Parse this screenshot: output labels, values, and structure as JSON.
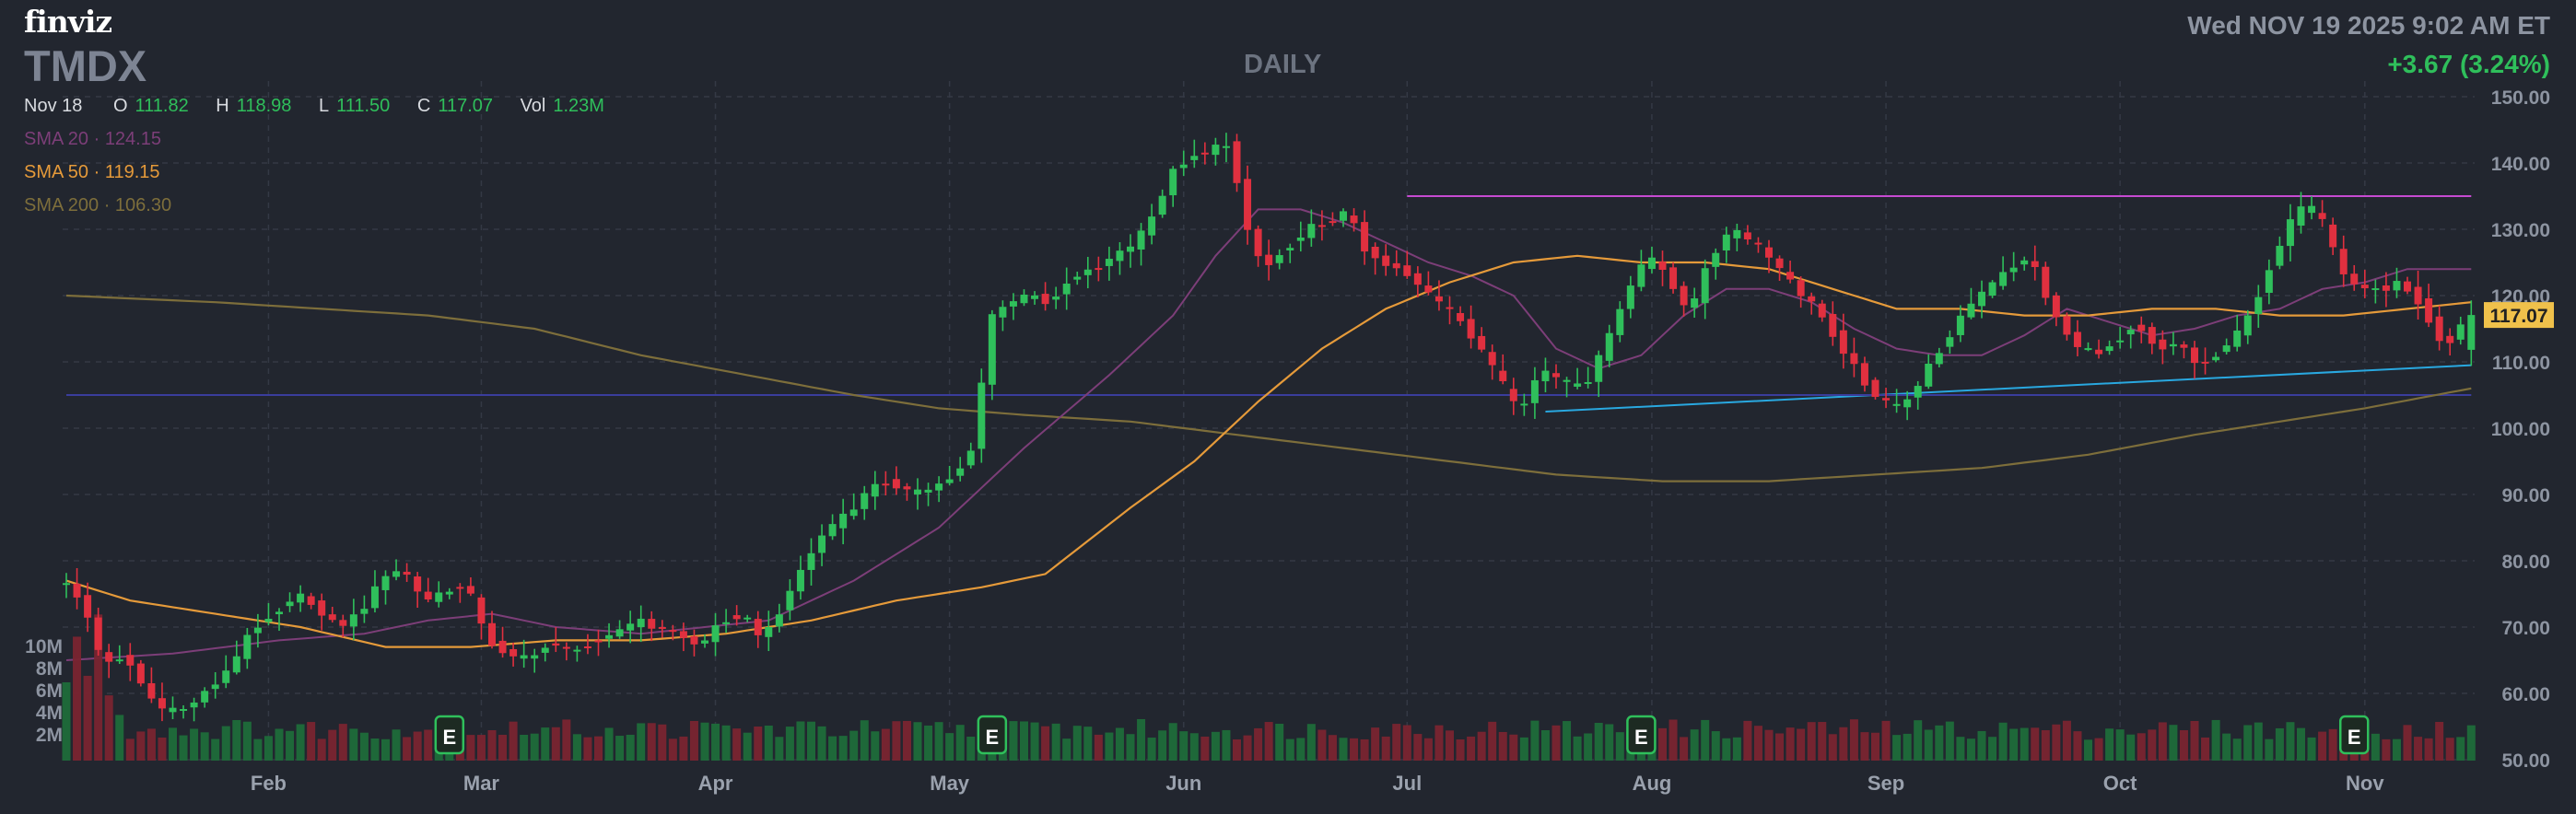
{
  "header": {
    "logo": "finviz",
    "ticker": "TMDX",
    "timeframe": "DAILY",
    "datetime": "Wed NOV 19 2025 9:02 AM ET",
    "change": "+3.67 (3.24%)"
  },
  "ohlc": {
    "date": "Nov 18",
    "open_label": "O",
    "open": "111.82",
    "high_label": "H",
    "high": "118.98",
    "low_label": "L",
    "low": "111.50",
    "close_label": "C",
    "close": "117.07",
    "vol_label": "Vol",
    "vol": "1.23M"
  },
  "indicators": [
    {
      "label": "SMA 20 · 124.15",
      "color": "#7c3e78"
    },
    {
      "label": "SMA 50 · 119.15",
      "color": "#e59a3a"
    },
    {
      "label": "SMA 200 · 106.30",
      "color": "#7d6e3b"
    }
  ],
  "colors": {
    "up": "#2fbf5b",
    "down": "#e0303f",
    "grid": "#343945",
    "price_tag": "#f0c14b"
  },
  "chart_data": {
    "type": "candlestick",
    "ylim": [
      50,
      150
    ],
    "y_ticks": [
      50,
      60,
      70,
      80,
      90,
      100,
      110,
      120,
      130,
      140,
      150
    ],
    "y_tick_labels": [
      "50.00",
      "60.00",
      "70.00",
      "80.00",
      "90.00",
      "100.00",
      "110.00",
      "120.00",
      "130.00",
      "140.00",
      "150.00"
    ],
    "x_tick_labels": [
      "Feb",
      "Mar",
      "Apr",
      "May",
      "Jun",
      "Jul",
      "Aug",
      "Sep",
      "Oct",
      "Nov"
    ],
    "x_tick_index": [
      19,
      39,
      61,
      83,
      105,
      126,
      149,
      171,
      193,
      216
    ],
    "last_price": "117.07",
    "volume_ticks": [
      "10M",
      "8M",
      "6M",
      "4M",
      "2M"
    ],
    "volume_max": 12,
    "earnings_markers": {
      "label": "E",
      "index": [
        36,
        87,
        148,
        215
      ]
    },
    "price_path": [
      [
        0,
        77
      ],
      [
        2,
        74
      ],
      [
        4,
        64
      ],
      [
        6,
        66
      ],
      [
        8,
        60
      ],
      [
        10,
        57
      ],
      [
        12,
        58
      ],
      [
        14,
        61
      ],
      [
        16,
        64
      ],
      [
        18,
        70
      ],
      [
        20,
        72
      ],
      [
        22,
        75
      ],
      [
        24,
        73
      ],
      [
        26,
        70
      ],
      [
        28,
        72
      ],
      [
        30,
        77
      ],
      [
        32,
        79
      ],
      [
        34,
        74
      ],
      [
        36,
        75
      ],
      [
        38,
        77
      ],
      [
        40,
        68
      ],
      [
        42,
        66
      ],
      [
        44,
        65
      ],
      [
        46,
        68
      ],
      [
        48,
        66
      ],
      [
        50,
        68
      ],
      [
        52,
        69
      ],
      [
        54,
        71
      ],
      [
        56,
        70
      ],
      [
        58,
        69
      ],
      [
        60,
        67
      ],
      [
        62,
        71
      ],
      [
        64,
        72
      ],
      [
        66,
        68
      ],
      [
        68,
        74
      ],
      [
        70,
        80
      ],
      [
        72,
        85
      ],
      [
        74,
        87
      ],
      [
        76,
        91
      ],
      [
        78,
        92
      ],
      [
        80,
        90
      ],
      [
        82,
        91
      ],
      [
        84,
        93
      ],
      [
        86,
        98
      ],
      [
        87,
        116
      ],
      [
        89,
        119
      ],
      [
        91,
        120
      ],
      [
        93,
        119
      ],
      [
        95,
        123
      ],
      [
        97,
        124
      ],
      [
        99,
        126
      ],
      [
        101,
        128
      ],
      [
        103,
        133
      ],
      [
        104,
        138
      ],
      [
        106,
        141
      ],
      [
        108,
        142
      ],
      [
        110,
        143
      ],
      [
        111,
        132
      ],
      [
        113,
        124
      ],
      [
        115,
        127
      ],
      [
        117,
        130
      ],
      [
        119,
        131
      ],
      [
        121,
        133
      ],
      [
        122,
        128
      ],
      [
        124,
        125
      ],
      [
        126,
        124
      ],
      [
        128,
        121
      ],
      [
        130,
        118
      ],
      [
        131,
        117
      ],
      [
        133,
        113
      ],
      [
        135,
        108
      ],
      [
        137,
        102
      ],
      [
        139,
        109
      ],
      [
        141,
        107
      ],
      [
        143,
        106
      ],
      [
        145,
        112
      ],
      [
        147,
        120
      ],
      [
        149,
        126
      ],
      [
        151,
        123
      ],
      [
        153,
        117
      ],
      [
        155,
        126
      ],
      [
        157,
        130
      ],
      [
        159,
        128
      ],
      [
        161,
        125
      ],
      [
        163,
        121
      ],
      [
        165,
        118
      ],
      [
        167,
        113
      ],
      [
        169,
        108
      ],
      [
        171,
        104
      ],
      [
        173,
        103
      ],
      [
        175,
        108
      ],
      [
        177,
        113
      ],
      [
        179,
        118
      ],
      [
        181,
        121
      ],
      [
        183,
        124
      ],
      [
        185,
        126
      ],
      [
        187,
        118
      ],
      [
        189,
        113
      ],
      [
        191,
        111
      ],
      [
        193,
        113
      ],
      [
        195,
        116
      ],
      [
        197,
        112
      ],
      [
        199,
        113
      ],
      [
        201,
        109
      ],
      [
        203,
        112
      ],
      [
        205,
        115
      ],
      [
        207,
        122
      ],
      [
        209,
        130
      ],
      [
        211,
        134
      ],
      [
        213,
        130
      ],
      [
        214,
        124
      ],
      [
        216,
        121
      ],
      [
        218,
        121
      ],
      [
        220,
        122
      ],
      [
        222,
        118
      ],
      [
        224,
        112
      ],
      [
        226,
        117
      ]
    ],
    "sma20_path": [
      [
        0,
        65
      ],
      [
        10,
        66
      ],
      [
        20,
        68
      ],
      [
        28,
        69
      ],
      [
        34,
        71
      ],
      [
        40,
        72
      ],
      [
        46,
        70
      ],
      [
        54,
        69
      ],
      [
        60,
        70
      ],
      [
        66,
        71
      ],
      [
        74,
        77
      ],
      [
        82,
        85
      ],
      [
        90,
        97
      ],
      [
        98,
        108
      ],
      [
        104,
        117
      ],
      [
        108,
        126
      ],
      [
        112,
        133
      ],
      [
        116,
        133
      ],
      [
        120,
        131
      ],
      [
        124,
        128
      ],
      [
        128,
        125
      ],
      [
        132,
        123
      ],
      [
        136,
        120
      ],
      [
        140,
        112
      ],
      [
        144,
        109
      ],
      [
        148,
        111
      ],
      [
        152,
        117
      ],
      [
        156,
        121
      ],
      [
        160,
        121
      ],
      [
        164,
        119
      ],
      [
        168,
        115
      ],
      [
        172,
        112
      ],
      [
        176,
        111
      ],
      [
        180,
        111
      ],
      [
        184,
        114
      ],
      [
        188,
        118
      ],
      [
        192,
        116
      ],
      [
        196,
        114
      ],
      [
        200,
        115
      ],
      [
        204,
        117
      ],
      [
        208,
        118
      ],
      [
        212,
        121
      ],
      [
        216,
        122
      ],
      [
        220,
        124
      ],
      [
        226,
        124
      ]
    ],
    "sma50_path": [
      [
        0,
        77
      ],
      [
        6,
        74
      ],
      [
        14,
        72
      ],
      [
        22,
        70
      ],
      [
        30,
        67
      ],
      [
        38,
        67
      ],
      [
        46,
        68
      ],
      [
        54,
        68
      ],
      [
        62,
        69
      ],
      [
        70,
        71
      ],
      [
        78,
        74
      ],
      [
        86,
        76
      ],
      [
        92,
        78
      ],
      [
        96,
        83
      ],
      [
        100,
        88
      ],
      [
        106,
        95
      ],
      [
        112,
        104
      ],
      [
        118,
        112
      ],
      [
        124,
        118
      ],
      [
        130,
        122
      ],
      [
        136,
        125
      ],
      [
        142,
        126
      ],
      [
        148,
        125
      ],
      [
        154,
        125
      ],
      [
        160,
        124
      ],
      [
        166,
        121
      ],
      [
        172,
        118
      ],
      [
        178,
        118
      ],
      [
        184,
        117
      ],
      [
        190,
        117
      ],
      [
        196,
        118
      ],
      [
        202,
        118
      ],
      [
        208,
        117
      ],
      [
        214,
        117
      ],
      [
        220,
        118
      ],
      [
        226,
        119
      ]
    ],
    "sma200_path": [
      [
        0,
        120
      ],
      [
        14,
        119
      ],
      [
        24,
        118
      ],
      [
        34,
        117
      ],
      [
        44,
        115
      ],
      [
        54,
        111
      ],
      [
        64,
        108
      ],
      [
        74,
        105
      ],
      [
        82,
        103
      ],
      [
        90,
        102
      ],
      [
        100,
        101
      ],
      [
        110,
        99
      ],
      [
        120,
        97
      ],
      [
        130,
        95
      ],
      [
        140,
        93
      ],
      [
        150,
        92
      ],
      [
        160,
        92
      ],
      [
        170,
        93
      ],
      [
        180,
        94
      ],
      [
        190,
        96
      ],
      [
        200,
        99
      ],
      [
        208,
        101
      ],
      [
        216,
        103
      ],
      [
        226,
        106
      ]
    ],
    "trendlines": [
      {
        "from": [
          126,
          135
        ],
        "to": [
          226,
          135
        ]
      },
      {
        "from": [
          139,
          102.5
        ],
        "to": [
          226,
          109.5
        ]
      },
      {
        "from": [
          0,
          105
        ],
        "to": [
          226,
          105
        ]
      }
    ]
  }
}
